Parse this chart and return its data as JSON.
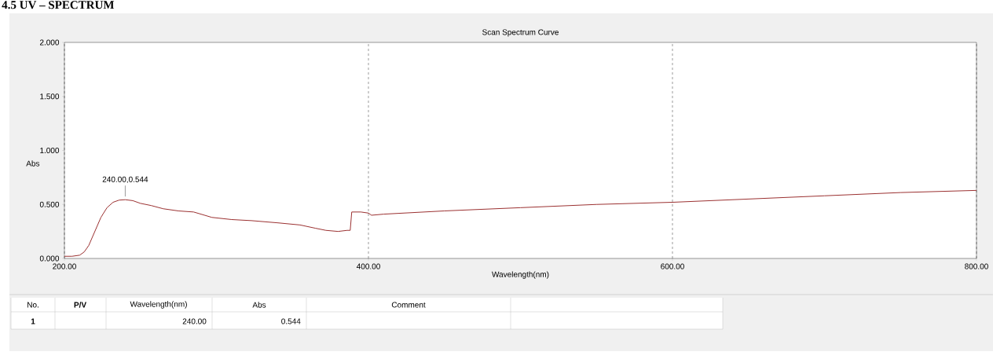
{
  "chart_data": {
    "type": "line",
    "title": "4.5 UV – SPECTRUM",
    "subtitle": "Scan Spectrum Curve",
    "xlabel": "Wavelength(nm)",
    "ylabel": "Abs",
    "x": [
      200,
      205,
      210,
      213,
      216,
      220,
      224,
      228,
      232,
      236,
      240,
      245,
      250,
      257,
      265,
      275,
      285,
      297,
      310,
      323,
      340,
      355,
      365,
      372,
      380,
      386,
      388,
      389,
      395,
      400,
      402,
      410,
      450,
      500,
      550,
      600,
      650,
      700,
      750,
      800
    ],
    "series": [
      {
        "color": "#9b3030",
        "line_style": "solid",
        "values": [
          0.02,
          0.02,
          0.03,
          0.06,
          0.12,
          0.25,
          0.38,
          0.47,
          0.52,
          0.54,
          0.544,
          0.535,
          0.51,
          0.49,
          0.46,
          0.44,
          0.43,
          0.38,
          0.36,
          0.35,
          0.33,
          0.31,
          0.28,
          0.26,
          0.25,
          0.26,
          0.26,
          0.43,
          0.43,
          0.42,
          0.4,
          0.41,
          0.44,
          0.47,
          0.5,
          0.52,
          0.55,
          0.58,
          0.61,
          0.63
        ]
      }
    ],
    "xlim": [
      200,
      800
    ],
    "ylim": [
      0,
      2
    ],
    "xticks": [
      {
        "value": 200,
        "label": "200.00"
      },
      {
        "value": 400,
        "label": "400.00"
      },
      {
        "value": 600,
        "label": "600.00"
      },
      {
        "value": 800,
        "label": "800.00"
      }
    ],
    "yticks": [
      {
        "value": 0,
        "label": "0.000"
      },
      {
        "value": 0.5,
        "label": "0.500"
      },
      {
        "value": 1,
        "label": "1.000"
      },
      {
        "value": 1.5,
        "label": "1.500"
      },
      {
        "value": 2,
        "label": "2.000"
      }
    ],
    "grid": "x",
    "annotations": [
      {
        "text": "240.00,0.544",
        "x": 240,
        "y": 0.544
      },
      "No.",
      "P/V",
      "Wavelength(nm)",
      "Abs",
      "Comment",
      "1",
      "240.00",
      "0.544"
    ]
  }
}
